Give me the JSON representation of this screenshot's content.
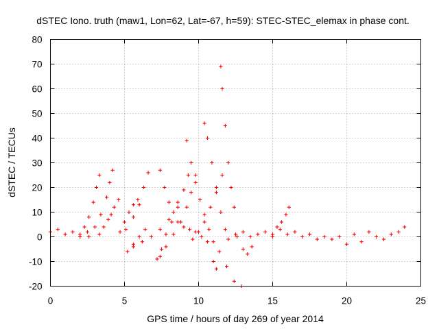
{
  "chart_data": {
    "type": "scatter",
    "title": "dSTEC Iono. truth (maw1, Lon=62, Lat=-67, h=59): STEC-STEC_elemax in phase cont.",
    "xlabel": "GPS time / hours of day 269 of year 2014",
    "ylabel": "dSTEC  / TECUs",
    "xlim": [
      0,
      25
    ],
    "ylim": [
      -20,
      80
    ],
    "x_ticks": [
      0,
      5,
      10,
      15,
      20,
      25
    ],
    "y_ticks": [
      -20,
      -10,
      0,
      10,
      20,
      30,
      40,
      50,
      60,
      70,
      80
    ],
    "x_tick_labels": [
      "0",
      "5",
      "10",
      "15",
      "20",
      "25"
    ],
    "y_tick_labels": [
      "-20",
      "-10",
      "0",
      "10",
      "20",
      "30",
      "40",
      "50",
      "60",
      "70",
      "80"
    ],
    "grid": true,
    "marker": "plus",
    "color": "#ff0000",
    "segments": [
      {
        "x": [
          0.0,
          0.5,
          1.0,
          1.5,
          2.0,
          2.5
        ],
        "y": [
          2,
          3,
          1,
          2,
          0,
          2
        ]
      },
      {
        "x": [
          2.0,
          2.3,
          2.6,
          2.9,
          3.1,
          3.3
        ],
        "y": [
          1,
          4,
          8,
          14,
          20,
          25
        ]
      },
      {
        "x": [
          2.6,
          3.0,
          3.4,
          3.8,
          4.0,
          4.2
        ],
        "y": [
          0,
          4,
          9,
          16,
          22,
          27
        ]
      },
      {
        "x": [
          3.3,
          3.6,
          3.9,
          4.1,
          4.3,
          4.6
        ],
        "y": [
          1,
          4,
          7,
          9,
          12,
          15
        ]
      },
      {
        "x": [
          4.7,
          5.0,
          5.3,
          5.6,
          5.9
        ],
        "y": [
          2,
          6,
          10,
          13,
          15
        ]
      },
      {
        "x": [
          5.1,
          5.6,
          6.0,
          6.3,
          6.6
        ],
        "y": [
          3,
          8,
          13,
          20,
          26
        ]
      },
      {
        "x": [
          5.2,
          5.6,
          6.0,
          6.4
        ],
        "y": [
          -6,
          -3,
          0,
          3
        ]
      },
      {
        "x": [
          5.6,
          6.2,
          6.8,
          7.4,
          8.0,
          8.6
        ],
        "y": [
          -4,
          -2,
          0,
          3,
          7,
          14
        ]
      },
      {
        "x": [
          7.2,
          7.5,
          7.8,
          8.2,
          8.6,
          9.0,
          9.3
        ],
        "y": [
          -9,
          -5,
          1,
          6,
          12,
          19,
          25
        ]
      },
      {
        "x": [
          7.4,
          7.7,
          8.0,
          8.3,
          8.6,
          9.0,
          9.4,
          9.8,
          10.2,
          10.6,
          11.0,
          11.2
        ],
        "y": [
          27,
          20,
          14,
          10,
          6,
          4,
          3,
          2,
          0,
          -2,
          -10,
          -13
        ]
      },
      {
        "x": [
          7.4,
          7.8,
          8.3,
          8.8,
          9.2,
          9.5,
          9.8
        ],
        "y": [
          -8,
          -4,
          1,
          6,
          12,
          18,
          25
        ]
      },
      {
        "x": [
          9.2,
          9.5,
          9.8,
          10.1,
          10.4,
          10.7,
          11.0,
          11.4,
          11.9,
          12.4,
          12.9
        ],
        "y": [
          39,
          30,
          22,
          15,
          9,
          3,
          -2,
          -6,
          -12,
          -18,
          -20
        ]
      },
      {
        "x": [
          9.6,
          10.0,
          10.4,
          10.8,
          11.2,
          11.6
        ],
        "y": [
          -1,
          2,
          6,
          12,
          18,
          25
        ]
      },
      {
        "x": [
          10.4,
          10.6,
          10.9,
          11.2,
          11.5,
          11.8,
          12.0
        ],
        "y": [
          46,
          40,
          30,
          20,
          10,
          3,
          -1
        ]
      },
      {
        "x": [
          11.5,
          11.6,
          11.8,
          12.0,
          12.2,
          12.4,
          12.6
        ],
        "y": [
          69,
          60,
          45,
          30,
          20,
          12,
          0
        ]
      },
      {
        "x": [
          12.5,
          13.0,
          13.5,
          14.0,
          14.5,
          15.0
        ],
        "y": [
          1,
          2,
          0,
          1,
          2,
          0
        ]
      },
      {
        "x": [
          13.0,
          13.3,
          13.6
        ],
        "y": [
          -5,
          -7,
          -4
        ]
      },
      {
        "x": [
          15.0,
          15.3,
          15.6,
          15.9,
          16.1
        ],
        "y": [
          1,
          4,
          6,
          9,
          12
        ]
      },
      {
        "x": [
          15.5,
          16.0,
          16.5,
          17.0,
          17.5,
          18.0,
          18.5
        ],
        "y": [
          3,
          1,
          2,
          0,
          1,
          -1,
          0
        ]
      },
      {
        "x": [
          19.0,
          19.5,
          20.0,
          20.5,
          21.0,
          21.5,
          22.0,
          22.5,
          23.0,
          23.5,
          23.9
        ],
        "y": [
          -1,
          0,
          -3,
          1,
          -2,
          2,
          0,
          -1,
          1,
          2,
          4
        ]
      }
    ]
  }
}
